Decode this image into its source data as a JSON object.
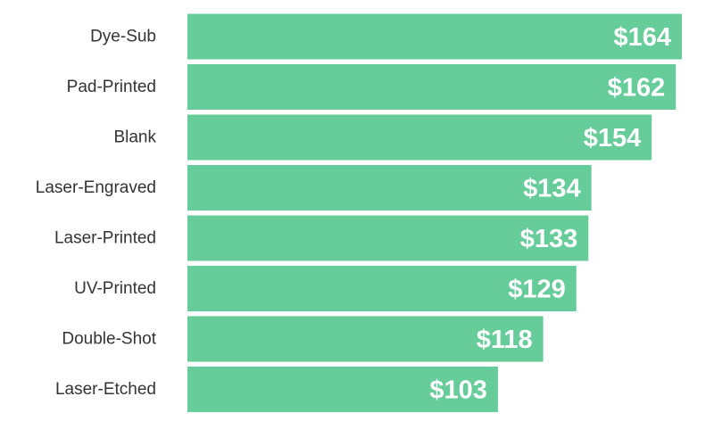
{
  "chart_data": {
    "type": "bar",
    "orientation": "horizontal",
    "categories": [
      "Dye-Sub",
      "Pad-Printed",
      "Blank",
      "Laser-Engraved",
      "Laser-Printed",
      "UV-Printed",
      "Double-Shot",
      "Laser-Etched"
    ],
    "values": [
      164,
      162,
      154,
      134,
      133,
      129,
      118,
      103
    ],
    "value_labels": [
      "$164",
      "$162",
      "$154",
      "$134",
      "$133",
      "$129",
      "$118",
      "$103"
    ],
    "title": "",
    "xlabel": "",
    "ylabel": "",
    "xlim": [
      0,
      164
    ],
    "grid": false,
    "legend": "none",
    "bar_color": "#66cc99",
    "value_label_color": "#ffffff",
    "category_label_color": "#333333"
  }
}
